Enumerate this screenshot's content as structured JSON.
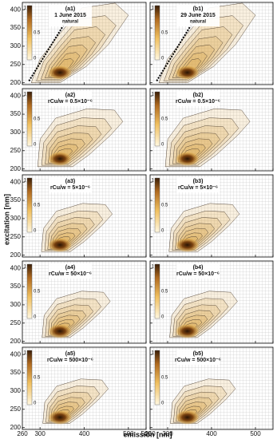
{
  "chart_data": [
    {
      "type": "contour",
      "label": "(a1)",
      "annotation": [
        "1 June 2015",
        "natural"
      ],
      "xlim": [
        260,
        540
      ],
      "ylim": [
        195,
        420
      ],
      "xticks": [
        260,
        300,
        400,
        500,
        540
      ],
      "yticks": [
        200,
        250,
        300,
        350,
        400
      ],
      "colorbar_ticks": [
        0,
        0.5,
        1
      ],
      "x_tick_labels": false,
      "y_tick_labels": true
    },
    {
      "type": "contour",
      "label": "(b1)",
      "annotation": [
        "29 June 2015",
        "natural"
      ],
      "xlim": [
        260,
        540
      ],
      "ylim": [
        195,
        420
      ],
      "xticks": [
        260,
        300,
        400,
        500,
        540
      ],
      "yticks": [
        200,
        250,
        300,
        350,
        400
      ],
      "colorbar_ticks": [
        0,
        0.5,
        1
      ],
      "x_tick_labels": false,
      "y_tick_labels": false
    },
    {
      "type": "contour",
      "label": "(a2)",
      "annotation": [
        "rCu/w = 0.5×10⁻⁶"
      ],
      "xlim": [
        260,
        540
      ],
      "ylim": [
        195,
        420
      ],
      "xticks": [
        260,
        300,
        400,
        500,
        540
      ],
      "yticks": [
        200,
        250,
        300,
        350,
        400
      ],
      "colorbar_ticks": [
        0,
        0.5,
        1
      ],
      "x_tick_labels": false,
      "y_tick_labels": true
    },
    {
      "type": "contour",
      "label": "(b2)",
      "annotation": [
        "rCu/w = 0.5×10⁻⁶"
      ],
      "xlim": [
        260,
        540
      ],
      "ylim": [
        195,
        420
      ],
      "xticks": [
        260,
        300,
        400,
        500,
        540
      ],
      "yticks": [
        200,
        250,
        300,
        350,
        400
      ],
      "colorbar_ticks": [
        0,
        0.5,
        1
      ],
      "x_tick_labels": false,
      "y_tick_labels": false
    },
    {
      "type": "contour",
      "label": "(a3)",
      "annotation": [
        "rCu/w = 5×10⁻⁶"
      ],
      "xlim": [
        260,
        540
      ],
      "ylim": [
        195,
        420
      ],
      "xticks": [
        260,
        300,
        400,
        500,
        540
      ],
      "yticks": [
        200,
        250,
        300,
        350,
        400
      ],
      "colorbar_ticks": [
        0,
        0.5,
        1
      ],
      "x_tick_labels": false,
      "y_tick_labels": true
    },
    {
      "type": "contour",
      "label": "(b3)",
      "annotation": [
        "rCu/w = 5×10⁻⁶"
      ],
      "xlim": [
        260,
        540
      ],
      "ylim": [
        195,
        420
      ],
      "xticks": [
        260,
        300,
        400,
        500,
        540
      ],
      "yticks": [
        200,
        250,
        300,
        350,
        400
      ],
      "colorbar_ticks": [
        0,
        0.5,
        1
      ],
      "x_tick_labels": false,
      "y_tick_labels": false
    },
    {
      "type": "contour",
      "label": "(a4)",
      "annotation": [
        "rCu/w = 50×10⁻⁶"
      ],
      "xlim": [
        260,
        540
      ],
      "ylim": [
        195,
        420
      ],
      "xticks": [
        260,
        300,
        400,
        500,
        540
      ],
      "yticks": [
        200,
        250,
        300,
        350,
        400
      ],
      "colorbar_ticks": [
        0,
        0.5,
        1
      ],
      "x_tick_labels": false,
      "y_tick_labels": true
    },
    {
      "type": "contour",
      "label": "(b4)",
      "annotation": [
        "rCu/w = 50×10⁻⁶"
      ],
      "xlim": [
        260,
        540
      ],
      "ylim": [
        195,
        420
      ],
      "xticks": [
        260,
        300,
        400,
        500,
        540
      ],
      "yticks": [
        200,
        250,
        300,
        350,
        400
      ],
      "colorbar_ticks": [
        0,
        0.5,
        1
      ],
      "x_tick_labels": false,
      "y_tick_labels": false
    },
    {
      "type": "contour",
      "label": "(a5)",
      "annotation": [
        "rCu/w = 500×10⁻⁶"
      ],
      "xlim": [
        260,
        540
      ],
      "ylim": [
        195,
        420
      ],
      "xticks": [
        260,
        300,
        400,
        500,
        540
      ],
      "yticks": [
        200,
        250,
        300,
        350,
        400
      ],
      "colorbar_ticks": [
        0,
        0.5,
        1
      ],
      "x_tick_labels": true,
      "y_tick_labels": true
    },
    {
      "type": "contour",
      "label": "(b5)",
      "annotation": [
        "rCu/w = 500×10⁻⁶"
      ],
      "xlim": [
        260,
        540
      ],
      "ylim": [
        195,
        420
      ],
      "xticks": [
        260,
        300,
        400,
        500
      ],
      "yticks": [
        200,
        250,
        300,
        350,
        400
      ],
      "colorbar_ticks": [
        0,
        0.5,
        1
      ],
      "x_tick_labels": true,
      "y_tick_labels": false
    }
  ],
  "ylabel": "excitation  [nm]",
  "xlabel": "emission  [nm]"
}
